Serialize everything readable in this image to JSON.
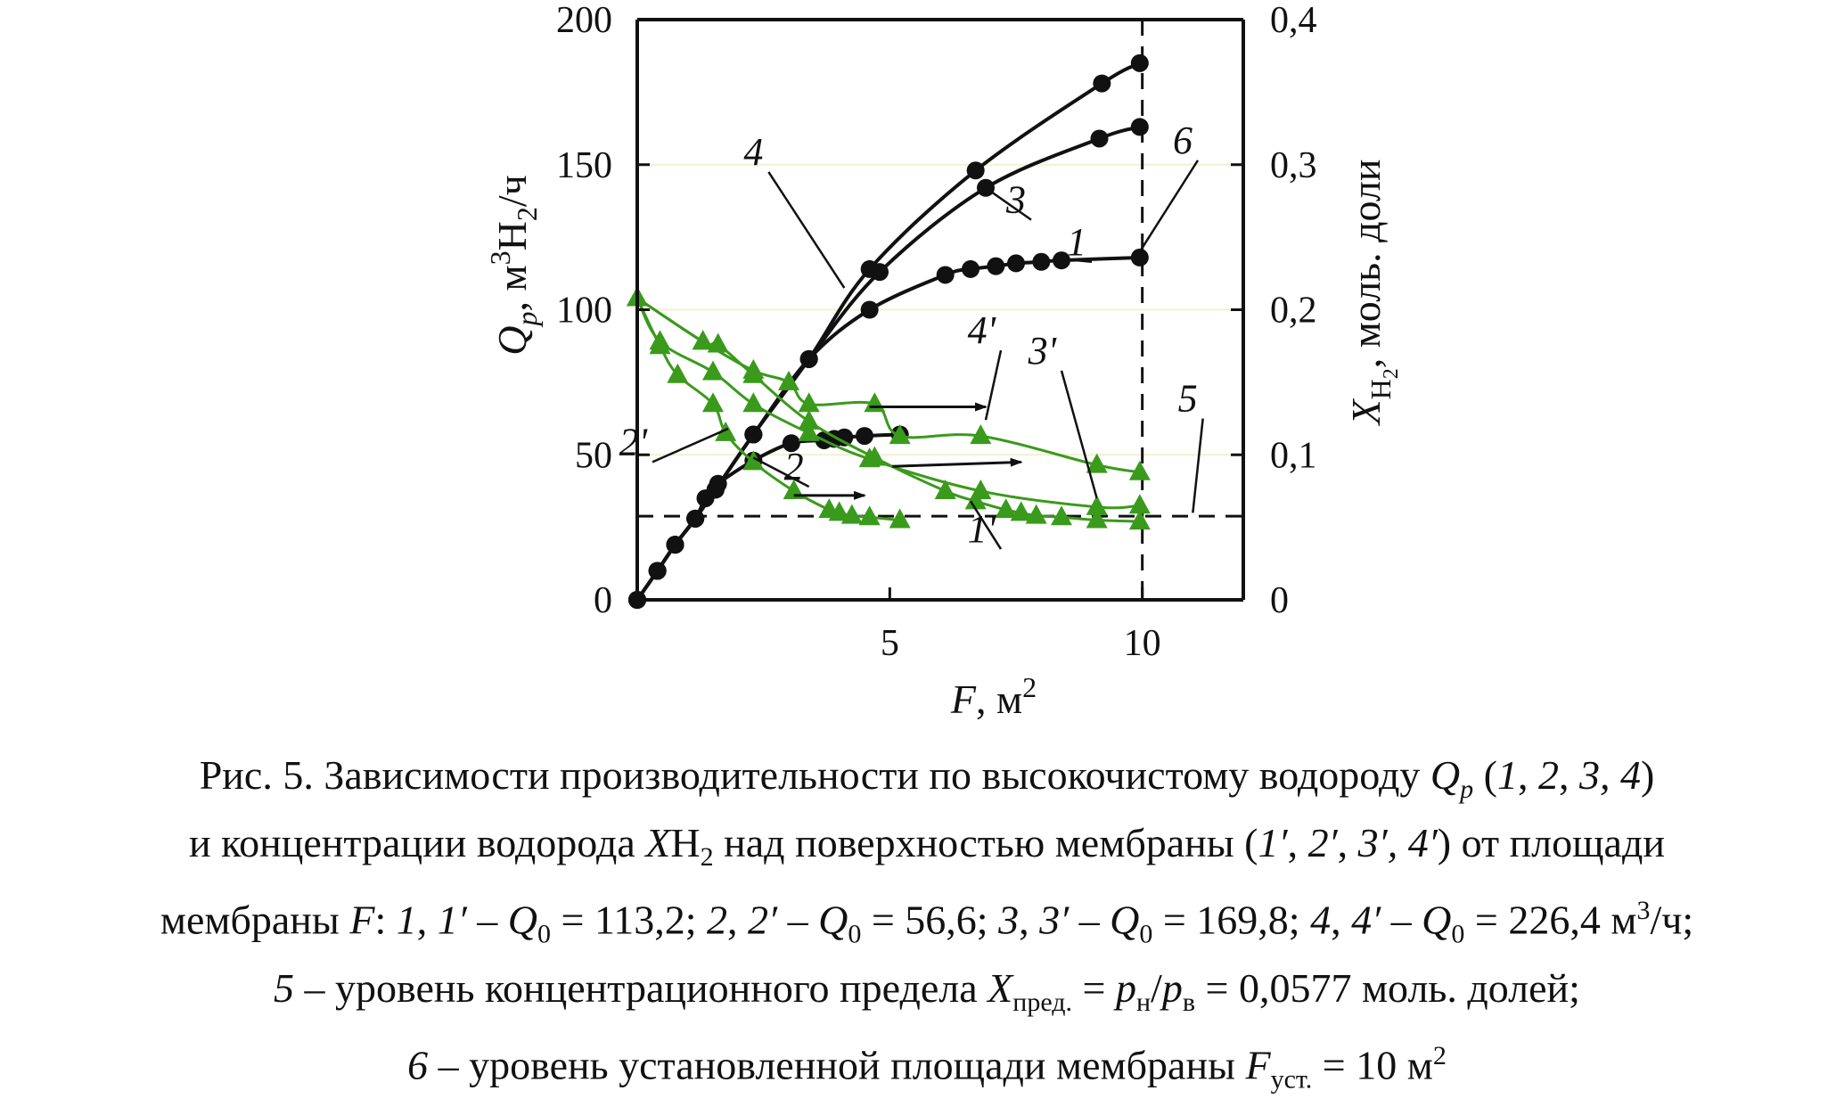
{
  "chart_data": {
    "type": "line",
    "x_axis": {
      "range": [
        0,
        12
      ],
      "ticks": [
        5,
        10
      ],
      "tick_labels": [
        "5",
        "10"
      ],
      "label": {
        "var": "F",
        "rest": ", м",
        "sup": "2"
      }
    },
    "y_left": {
      "range": [
        0,
        200
      ],
      "ticks": [
        0,
        50,
        100,
        150,
        200
      ],
      "tick_labels": [
        "0",
        "50",
        "100",
        "150",
        "200"
      ],
      "label": {
        "var": "Q",
        "sub1": "p",
        "rest1": ", м",
        "sup": "3",
        "rest2": "H",
        "sub2": "2",
        "rest3": "/ч"
      }
    },
    "y_right": {
      "range": [
        0,
        0.4
      ],
      "ticks": [
        0,
        0.1,
        0.2,
        0.3,
        0.4
      ],
      "tick_labels": [
        "0",
        "0,1",
        "0,2",
        "0,3",
        "0,4"
      ],
      "label": {
        "var": "X",
        "sub": "H",
        "subsub": "2",
        "rest": ", моль. доли"
      }
    },
    "grid": "horizontal-light",
    "series": [
      {
        "name": "1",
        "axis": "left",
        "marker": "circle",
        "color": "#111111",
        "x": [
          0,
          0.4,
          0.75,
          1.15,
          1.55,
          2.3,
          3.4,
          4.6,
          6.1,
          6.6,
          7.1,
          7.5,
          8.0,
          8.4,
          9.95
        ],
        "y": [
          0,
          10,
          19,
          28,
          38,
          57,
          83,
          100,
          112,
          114,
          115,
          116,
          116.5,
          117,
          118
        ]
      },
      {
        "name": "2",
        "axis": "left",
        "marker": "circle",
        "color": "#111111",
        "x": [
          0,
          0.4,
          0.75,
          1.15,
          1.35,
          1.6,
          2.3,
          3.05,
          3.7,
          3.9,
          4.1,
          4.5,
          5.2
        ],
        "y": [
          0,
          10,
          19,
          28,
          35,
          40,
          48,
          54,
          55,
          55.5,
          56,
          56.5,
          57
        ]
      },
      {
        "name": "3",
        "axis": "left",
        "marker": "circle",
        "color": "#111111",
        "x": [
          0,
          0.4,
          0.75,
          1.15,
          1.55,
          2.3,
          3.4,
          4.8,
          6.9,
          9.15,
          9.95
        ],
        "y": [
          0,
          10,
          19,
          28,
          38,
          57,
          83,
          113,
          142,
          159,
          163
        ]
      },
      {
        "name": "4",
        "axis": "left",
        "marker": "circle",
        "color": "#111111",
        "x": [
          0,
          0.4,
          0.75,
          1.15,
          1.55,
          2.3,
          3.4,
          4.6,
          6.7,
          9.2,
          9.95
        ],
        "y": [
          0,
          10,
          19,
          28,
          38,
          57,
          83,
          114,
          148,
          178,
          185
        ]
      },
      {
        "name": "1'",
        "axis": "right",
        "marker": "triangle",
        "color": "#3a9a1c",
        "x": [
          0,
          1.3,
          1.6,
          2.3,
          3.4,
          4.7,
          6.1,
          6.7,
          7.3,
          7.6,
          7.9,
          8.4,
          9.1,
          9.95
        ],
        "y": [
          0.208,
          0.178,
          0.176,
          0.155,
          0.123,
          0.098,
          0.075,
          0.068,
          0.062,
          0.06,
          0.058,
          0.057,
          0.055,
          0.054
        ]
      },
      {
        "name": "2'",
        "axis": "right",
        "marker": "triangle",
        "color": "#3a9a1c",
        "x": [
          0,
          0.45,
          0.8,
          1.5,
          1.75,
          2.3,
          3.1,
          3.8,
          4.0,
          4.25,
          4.6,
          5.2
        ],
        "y": [
          0.208,
          0.175,
          0.155,
          0.135,
          0.115,
          0.095,
          0.075,
          0.062,
          0.06,
          0.058,
          0.057,
          0.055
        ]
      },
      {
        "name": "3'",
        "axis": "right",
        "marker": "triangle",
        "color": "#3a9a1c",
        "x": [
          0,
          0.45,
          1.5,
          2.3,
          3.4,
          4.6,
          6.8,
          9.1,
          9.95
        ],
        "y": [
          0.208,
          0.178,
          0.157,
          0.135,
          0.115,
          0.097,
          0.075,
          0.064,
          0.065
        ]
      },
      {
        "name": "4'",
        "axis": "right",
        "marker": "triangle",
        "color": "#3a9a1c",
        "x": [
          0,
          1.3,
          2.3,
          3.0,
          3.4,
          4.7,
          5.2,
          6.8,
          9.1,
          9.95
        ],
        "y": [
          0.208,
          0.178,
          0.158,
          0.15,
          0.135,
          0.135,
          0.113,
          0.113,
          0.093,
          0.088
        ]
      }
    ],
    "reference_lines": [
      {
        "name": "5",
        "orientation": "horizontal",
        "axis": "right",
        "value": 0.0577,
        "style": "dashed"
      },
      {
        "name": "6",
        "orientation": "vertical",
        "axis": "x",
        "value": 10,
        "style": "dashed"
      }
    ],
    "curve_labels": [
      {
        "text": "1",
        "anchor": [
          9.0,
          0.233
        ],
        "leader_to": [
          8.4,
          0.235
        ]
      },
      {
        "text": "2",
        "anchor": [
          3.4,
          0.078
        ],
        "leader_to": [
          2.3,
          0.098
        ]
      },
      {
        "text": "3",
        "anchor": [
          7.8,
          0.262
        ],
        "leader_to": [
          6.9,
          0.284
        ]
      },
      {
        "text": "4",
        "anchor": [
          2.6,
          0.295
        ],
        "leader_to": [
          4.1,
          0.215
        ]
      },
      {
        "text": "6",
        "anchor": [
          11.1,
          0.303
        ],
        "leader_to": [
          9.95,
          0.24
        ]
      },
      {
        "text": "1'",
        "anchor": [
          7.2,
          0.035
        ],
        "leader_to": [
          6.6,
          0.068
        ]
      },
      {
        "text": "2'",
        "anchor": [
          0.3,
          0.095
        ],
        "leader_to": [
          1.8,
          0.118
        ]
      },
      {
        "text": "3'",
        "anchor": [
          8.4,
          0.158
        ],
        "leader_to": [
          9.1,
          0.07
        ]
      },
      {
        "text": "4'",
        "anchor": [
          7.2,
          0.172
        ],
        "leader_to": [
          6.9,
          0.124
        ]
      },
      {
        "text": "5",
        "anchor": [
          11.2,
          0.125
        ],
        "leader_to": [
          11.0,
          0.06
        ]
      }
    ],
    "axis_arrows": [
      {
        "from": [
          4.6,
          0.133
        ],
        "to": [
          6.9,
          0.133
        ]
      },
      {
        "from": [
          5.05,
          0.092
        ],
        "to": [
          7.6,
          0.095
        ]
      },
      {
        "from": [
          3.1,
          0.072
        ],
        "to": [
          4.5,
          0.072
        ]
      }
    ]
  },
  "caption": {
    "line1_parts": [
      {
        "text": "Рис. 5. Зависимости производительности по высокочистому водороду ",
        "italic": false
      },
      {
        "text": "Q",
        "italic": true
      },
      {
        "text": "p",
        "italic": true,
        "sub": true
      },
      {
        "text": " (",
        "italic": false
      },
      {
        "text": "1",
        "italic": true
      },
      {
        "text": ", ",
        "italic": false
      },
      {
        "text": "2",
        "italic": true
      },
      {
        "text": ", ",
        "italic": false
      },
      {
        "text": "3, 4",
        "italic": true
      },
      {
        "text": ")",
        "italic": false
      }
    ],
    "line2_parts": [
      {
        "text": "и концентрации водорода ",
        "italic": false
      },
      {
        "text": "X",
        "italic": true
      },
      {
        "text": "H",
        "italic": false
      },
      {
        "text": "2",
        "italic": false,
        "sub": true
      },
      {
        "text": " над поверхностью мембраны (",
        "italic": false
      },
      {
        "text": "1′",
        "italic": true
      },
      {
        "text": ", ",
        "italic": false
      },
      {
        "text": "2′",
        "italic": true
      },
      {
        "text": ", ",
        "italic": false
      },
      {
        "text": "3′, 4′",
        "italic": true
      },
      {
        "text": ") от площади",
        "italic": false
      }
    ],
    "line3_parts": [
      {
        "text": "мембраны ",
        "italic": false
      },
      {
        "text": "F",
        "italic": true
      },
      {
        "text": ": ",
        "italic": false
      },
      {
        "text": "1",
        "italic": true
      },
      {
        "text": ", ",
        "italic": false
      },
      {
        "text": "1′",
        "italic": true
      },
      {
        "text": " – ",
        "italic": false
      },
      {
        "text": "Q",
        "italic": true
      },
      {
        "text": "0",
        "italic": false,
        "sub": true
      },
      {
        "text": " = 113,2; ",
        "italic": false
      },
      {
        "text": "2",
        "italic": true
      },
      {
        "text": ", ",
        "italic": false
      },
      {
        "text": "2′",
        "italic": true
      },
      {
        "text": " – ",
        "italic": false
      },
      {
        "text": "Q",
        "italic": true
      },
      {
        "text": "0",
        "italic": false,
        "sub": true
      },
      {
        "text": " = 56,6; ",
        "italic": false
      },
      {
        "text": "3",
        "italic": true
      },
      {
        "text": ", ",
        "italic": false
      },
      {
        "text": "3′",
        "italic": true
      },
      {
        "text": " – ",
        "italic": false
      },
      {
        "text": "Q",
        "italic": true
      },
      {
        "text": "0",
        "italic": false,
        "sub": true
      },
      {
        "text": " = 169,8; ",
        "italic": false
      },
      {
        "text": "4",
        "italic": true
      },
      {
        "text": ", ",
        "italic": false
      },
      {
        "text": "4′",
        "italic": true
      },
      {
        "text": " – ",
        "italic": false
      },
      {
        "text": "Q",
        "italic": true
      },
      {
        "text": "0",
        "italic": false,
        "sub": true
      },
      {
        "text": " = 226,4 м",
        "italic": false
      },
      {
        "text": "3",
        "italic": false,
        "sup": true
      },
      {
        "text": "/ч;",
        "italic": false
      }
    ],
    "line4_parts": [
      {
        "text": "5",
        "italic": true
      },
      {
        "text": " – уровень концентрационного предела ",
        "italic": false
      },
      {
        "text": "X",
        "italic": true
      },
      {
        "text": "пред.",
        "italic": false,
        "sub": true
      },
      {
        "text": " = ",
        "italic": false
      },
      {
        "text": "p",
        "italic": true
      },
      {
        "text": "н",
        "italic": false,
        "sub": true
      },
      {
        "text": "/",
        "italic": false
      },
      {
        "text": "p",
        "italic": true
      },
      {
        "text": "в",
        "italic": false,
        "sub": true
      },
      {
        "text": " = 0,0577 моль. долей;",
        "italic": false
      }
    ],
    "line5_parts": [
      {
        "text": "6",
        "italic": true
      },
      {
        "text": " – уровень установленной площади мембраны ",
        "italic": false
      },
      {
        "text": "F",
        "italic": true
      },
      {
        "text": "уст.",
        "italic": false,
        "sub": true
      },
      {
        "text": " = 10 м",
        "italic": false
      },
      {
        "text": "2",
        "italic": false,
        "sup": true
      }
    ]
  }
}
